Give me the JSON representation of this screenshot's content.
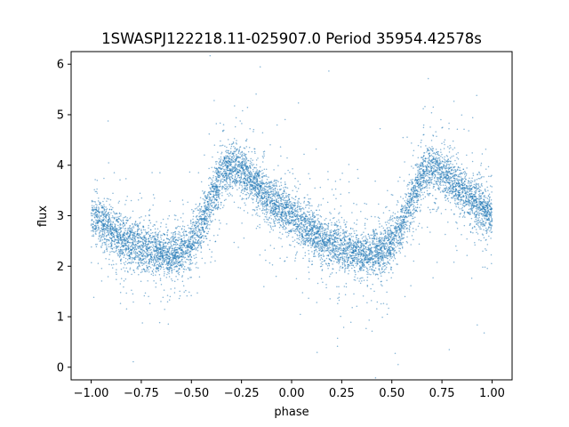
{
  "chart_data": {
    "type": "scatter",
    "title": "1SWASPJ122218.11-025907.0 Period 35954.42578s",
    "xlabel": "phase",
    "ylabel": "flux",
    "xlim": [
      -1.1,
      1.1
    ],
    "ylim": [
      -0.25,
      6.25
    ],
    "x_ticks": [
      -1.0,
      -0.75,
      -0.5,
      -0.25,
      0.0,
      0.25,
      0.5,
      0.75,
      1.0
    ],
    "x_tick_labels": [
      "−1.00",
      "−0.75",
      "−0.50",
      "−0.25",
      "0.00",
      "0.25",
      "0.50",
      "0.75",
      "1.00"
    ],
    "y_ticks": [
      0,
      1,
      2,
      3,
      4,
      5,
      6
    ],
    "y_tick_labels": [
      "0",
      "1",
      "2",
      "3",
      "4",
      "5",
      "6"
    ],
    "grid": false,
    "marker_color": "#1f77b4",
    "series": [
      {
        "x": [
          -1.0,
          -0.95,
          -0.9,
          -0.85,
          -0.8,
          -0.75,
          -0.7,
          -0.65,
          -0.6,
          -0.55,
          -0.5,
          -0.45,
          -0.4,
          -0.35,
          -0.3,
          -0.25,
          -0.2,
          -0.15,
          -0.1,
          -0.05,
          0.0,
          0.05,
          0.1,
          0.15,
          0.2,
          0.25,
          0.3,
          0.35,
          0.4,
          0.45,
          0.5,
          0.55,
          0.6,
          0.65,
          0.7,
          0.75,
          0.8,
          0.85,
          0.9,
          0.95,
          1.0
        ],
        "y": [
          3.0,
          2.85,
          2.7,
          2.55,
          2.45,
          2.35,
          2.3,
          2.25,
          2.25,
          2.3,
          2.45,
          2.8,
          3.3,
          3.8,
          4.0,
          3.9,
          3.7,
          3.5,
          3.3,
          3.15,
          3.0,
          2.85,
          2.7,
          2.55,
          2.45,
          2.35,
          2.3,
          2.25,
          2.25,
          2.3,
          2.45,
          2.8,
          3.3,
          3.8,
          4.0,
          3.9,
          3.7,
          3.5,
          3.3,
          3.15,
          3.0
        ]
      }
    ]
  }
}
